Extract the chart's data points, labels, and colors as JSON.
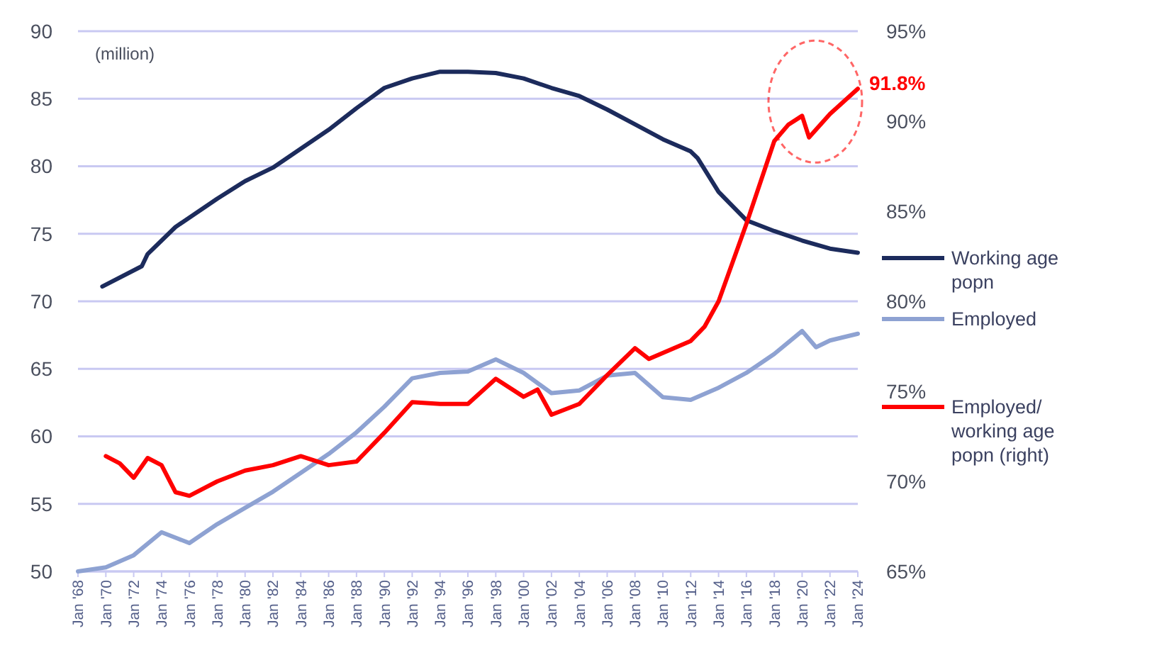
{
  "chart_data": {
    "type": "line",
    "ylabel": "(million)",
    "legend": "right",
    "grid": "y",
    "line_style": "solid",
    "xlim": [
      "1968-01",
      "2024-01"
    ],
    "xticks": [
      {
        "value": "1968-01",
        "label": "Jan '68"
      },
      {
        "value": "1970-01",
        "label": "Jan '70"
      },
      {
        "value": "1972-01",
        "label": "Jan '72"
      },
      {
        "value": "1974-01",
        "label": "Jan '74"
      },
      {
        "value": "1976-01",
        "label": "Jan '76"
      },
      {
        "value": "1978-01",
        "label": "Jan '78"
      },
      {
        "value": "1980-01",
        "label": "Jan '80"
      },
      {
        "value": "1982-01",
        "label": "Jan '82"
      },
      {
        "value": "1984-01",
        "label": "Jan '84"
      },
      {
        "value": "1986-01",
        "label": "Jan '86"
      },
      {
        "value": "1988-01",
        "label": "Jan '88"
      },
      {
        "value": "1990-01",
        "label": "Jan '90"
      },
      {
        "value": "1992-01",
        "label": "Jan '92"
      },
      {
        "value": "1994-01",
        "label": "Jan '94"
      },
      {
        "value": "1996-01",
        "label": "Jan '96"
      },
      {
        "value": "1998-01",
        "label": "Jan '98"
      },
      {
        "value": "2000-01",
        "label": "Jan '00"
      },
      {
        "value": "2002-01",
        "label": "Jan '02"
      },
      {
        "value": "2004-01",
        "label": "Jan '04"
      },
      {
        "value": "2006-01",
        "label": "Jan '06"
      },
      {
        "value": "2008-01",
        "label": "Jan '08"
      },
      {
        "value": "2010-01",
        "label": "Jan '10"
      },
      {
        "value": "2012-01",
        "label": "Jan '12"
      },
      {
        "value": "2014-01",
        "label": "Jan '14"
      },
      {
        "value": "2016-01",
        "label": "Jan '16"
      },
      {
        "value": "2018-01",
        "label": "Jan '18"
      },
      {
        "value": "2020-01",
        "label": "Jan '20"
      },
      {
        "value": "2022-01",
        "label": "Jan '22"
      },
      {
        "value": "2024-01",
        "label": "Jan '24"
      }
    ],
    "ylim": [
      50,
      90
    ],
    "yticks": [
      50,
      55,
      60,
      65,
      70,
      75,
      80,
      85,
      90
    ],
    "y2lim": [
      65,
      95
    ],
    "y2ticks": [
      {
        "value": 65,
        "label": "65%"
      },
      {
        "value": 70,
        "label": "70%"
      },
      {
        "value": 75,
        "label": "75%"
      },
      {
        "value": 80,
        "label": "80%"
      },
      {
        "value": 85,
        "label": "85%"
      },
      {
        "value": 90,
        "label": "90%"
      },
      {
        "value": 95,
        "label": "95%"
      }
    ],
    "series": [
      {
        "name": "Working age popn",
        "color": "#1c2b5c",
        "x": [
          "1969-10",
          "1972-08",
          "1973-01",
          "1975-01",
          "1978-01",
          "1980-01",
          "1982-01",
          "1984-01",
          "1986-01",
          "1988-01",
          "1990-01",
          "1992-01",
          "1994-01",
          "1996-01",
          "1998-01",
          "2000-01",
          "2002-01",
          "2004-01",
          "2006-01",
          "2008-01",
          "2010-01",
          "2012-01",
          "2012-07",
          "2014-01",
          "2016-01",
          "2018-01",
          "2020-01",
          "2022-01",
          "2024-01"
        ],
        "values": [
          71.1,
          72.6,
          73.5,
          75.5,
          77.6,
          78.9,
          79.9,
          81.3,
          82.7,
          84.3,
          85.8,
          86.5,
          87.0,
          87.0,
          86.9,
          86.5,
          85.8,
          85.2,
          84.2,
          83.1,
          82.0,
          81.1,
          80.6,
          78.1,
          76.0,
          75.2,
          74.5,
          73.9,
          73.6
        ]
      },
      {
        "name": "Employed",
        "color": "#8ea2d2",
        "x": [
          "1968-01",
          "1970-01",
          "1972-01",
          "1974-01",
          "1976-01",
          "1978-01",
          "1980-01",
          "1982-01",
          "1984-01",
          "1986-01",
          "1988-01",
          "1990-01",
          "1992-01",
          "1994-01",
          "1996-01",
          "1998-01",
          "2000-01",
          "2002-01",
          "2004-01",
          "2006-01",
          "2008-01",
          "2010-01",
          "2012-01",
          "2014-01",
          "2016-01",
          "2018-01",
          "2020-01",
          "2021-01",
          "2022-01",
          "2024-01"
        ],
        "values": [
          50.0,
          50.3,
          51.2,
          52.9,
          52.1,
          53.5,
          54.7,
          55.9,
          57.3,
          58.7,
          60.3,
          62.2,
          64.3,
          64.7,
          64.8,
          65.7,
          64.7,
          63.2,
          63.4,
          64.5,
          64.7,
          62.9,
          62.7,
          63.6,
          64.7,
          66.1,
          67.8,
          66.6,
          67.1,
          67.6
        ]
      },
      {
        "name": "Employed/ working age popn (right)",
        "color": "#ff0000",
        "axis": "y2",
        "x": [
          "1970-01",
          "1971-01",
          "1972-01",
          "1973-01",
          "1974-01",
          "1975-01",
          "1976-01",
          "1978-01",
          "1980-01",
          "1982-01",
          "1984-01",
          "1986-01",
          "1988-01",
          "1990-01",
          "1992-01",
          "1994-01",
          "1996-01",
          "1998-01",
          "2000-01",
          "2001-01",
          "2002-01",
          "2004-01",
          "2006-01",
          "2008-01",
          "2009-01",
          "2012-01",
          "2013-01",
          "2014-01",
          "2016-01",
          "2018-01",
          "2019-01",
          "2020-01",
          "2020-07",
          "2022-01",
          "2023-01",
          "2024-01"
        ],
        "values": [
          71.4,
          71.0,
          70.2,
          71.3,
          70.9,
          69.4,
          69.2,
          70.0,
          70.6,
          70.9,
          71.4,
          70.9,
          71.1,
          72.7,
          74.4,
          74.3,
          74.3,
          75.7,
          74.7,
          75.1,
          73.7,
          74.3,
          75.9,
          77.4,
          76.8,
          77.8,
          78.6,
          80.0,
          84.3,
          88.9,
          89.8,
          90.3,
          89.1,
          90.4,
          91.1,
          91.8
        ]
      }
    ],
    "annotations": [
      "91.8%"
    ]
  }
}
